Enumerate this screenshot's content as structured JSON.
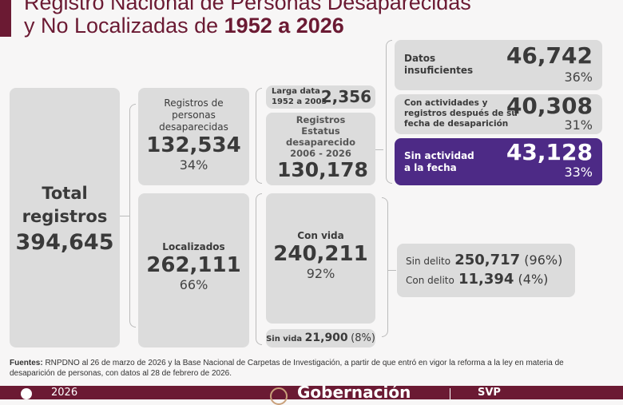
{
  "header": {
    "title_line1": "Registro Nacional de Personas Desaparecidas",
    "title_line2_prefix": "y No Localizadas de ",
    "title_line2_bold": "1952 a 2026"
  },
  "total": {
    "label1": "Total",
    "label2": "registros",
    "value": "394,645"
  },
  "desaparecidas": {
    "label": "Registros de personas desaparecidas",
    "value": "132,534",
    "pct": "34%"
  },
  "localizados": {
    "label": "Localizados",
    "value": "262,111",
    "pct": "66%"
  },
  "larga_data": {
    "label1": "Larga data",
    "label2": "1952 a 2005",
    "value": "2,356"
  },
  "estatus": {
    "label": "Registros Estatus desaparecido 2006 - 2026",
    "value": "130,178"
  },
  "con_vida": {
    "label": "Con vida",
    "value": "240,211",
    "pct": "92%"
  },
  "sin_vida": {
    "label": "Sin vida",
    "value": "21,900",
    "pct": "(8%)"
  },
  "datos": {
    "label1": "Datos",
    "label2": "insuficientes",
    "value": "46,742",
    "pct": "36%"
  },
  "con_actividades": {
    "label": "Con actividades y registros después de su fecha de desaparición",
    "value": "40,308",
    "pct": "31%"
  },
  "sin_actividad": {
    "label1": "Sin actividad",
    "label2": "a la fecha",
    "value": "43,128",
    "pct": "33%"
  },
  "delito": {
    "sin_label": "Sin delito",
    "sin_value": "250,717",
    "sin_pct": "(96%)",
    "con_label": "Con delito",
    "con_value": "11,394",
    "con_pct": "(4%)"
  },
  "footer": {
    "fuentes_label": "Fuentes:",
    "fuentes_text": " RNPDNO al 26 de marzo de 2026 y la Base Nacional de Carpetas de Investigación, a partir de que entró en vigor la reforma a la ley en materia de desaparición de personas, con datos al 28 de febrero de 2026.",
    "year": "2026",
    "gobernacion": "Gobernación",
    "svp": "SVP"
  },
  "colors": {
    "maroon": "#6b1a33",
    "purple": "#4d2a86",
    "box_gray": "#dcdcdc"
  }
}
